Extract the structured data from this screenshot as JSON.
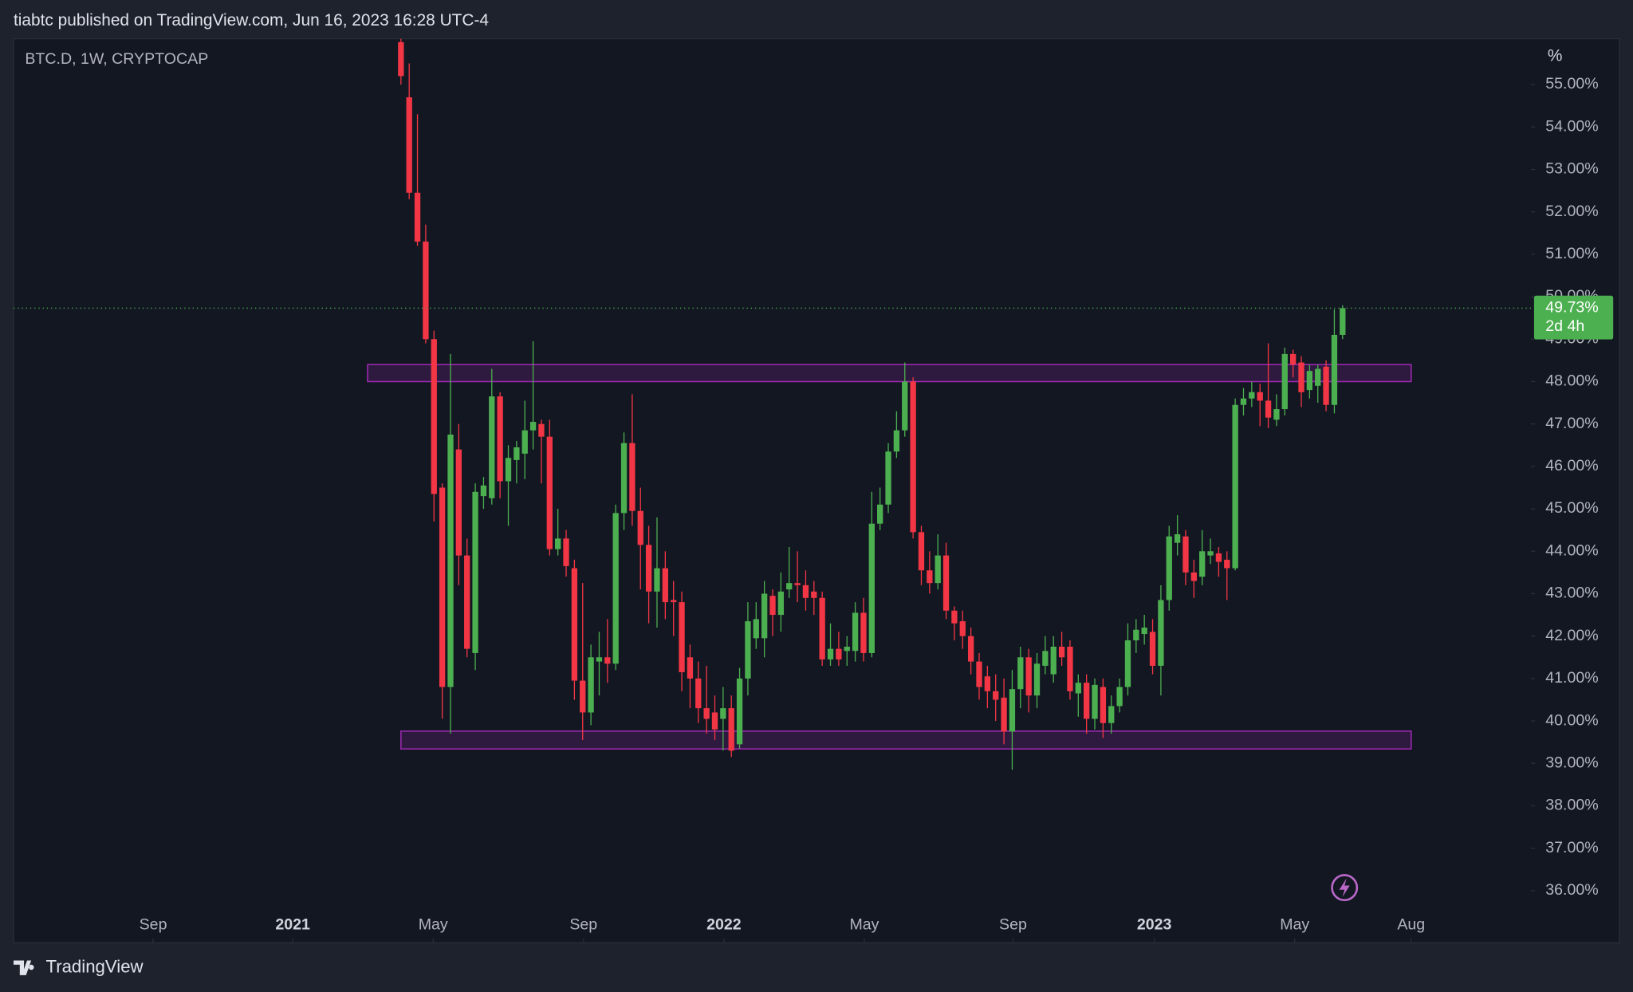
{
  "header": "tiabtc published on TradingView.com, Jun 16, 2023 16:28 UTC-4",
  "footer": "TradingView",
  "chart_data": {
    "type": "candlestick",
    "subtitle": "BTC.D, 1W, CRYPTOCAP",
    "y_unit": "%",
    "up_color": "#4caf50",
    "down_color": "#f23645",
    "open": [
      56.0,
      54.7,
      52.45,
      51.3,
      49.0,
      45.5,
      40.8,
      46.4,
      43.9,
      41.6,
      45.3,
      45.25,
      47.65,
      45.65,
      46.15,
      46.3,
      46.85,
      47.0,
      46.7,
      44.05,
      44.3,
      43.6,
      40.95,
      40.2,
      41.4,
      41.5,
      41.35,
      44.9,
      46.55,
      44.95,
      44.15,
      43.05,
      43.6,
      42.85,
      42.8,
      41.5,
      41.0,
      40.3,
      40.2,
      40.05,
      40.3,
      39.45,
      41.0,
      41.95,
      41.95,
      42.95,
      42.5,
      43.1,
      43.25,
      43.2,
      43.05,
      42.9,
      41.45,
      41.7,
      41.65,
      41.65,
      42.55,
      41.6,
      44.65,
      45.1,
      46.35,
      46.85,
      48.0,
      44.45,
      43.55,
      43.25,
      43.9,
      42.6,
      42.35,
      42.0,
      41.4,
      41.05,
      40.7,
      40.55,
      39.75,
      40.75,
      41.5,
      40.6,
      41.3,
      41.1,
      41.75,
      41.75,
      40.65,
      40.9,
      40.05,
      40.8,
      39.95,
      40.35,
      40.8,
      41.9,
      42.05,
      42.1,
      41.3,
      42.85,
      44.2,
      44.35,
      43.5,
      43.4,
      43.9,
      43.95,
      43.8,
      43.6,
      47.45,
      47.6,
      47.75,
      47.55,
      47.1,
      47.35,
      48.65,
      48.45,
      47.8,
      47.9,
      48.35,
      47.45,
      49.1
    ],
    "high": [
      56.3,
      55.5,
      54.3,
      51.7,
      49.2,
      45.6,
      48.65,
      47.0,
      44.3,
      45.6,
      45.75,
      48.3,
      47.75,
      46.5,
      46.6,
      47.55,
      48.95,
      47.1,
      47.1,
      45.0,
      44.5,
      43.8,
      43.25,
      41.8,
      42.1,
      42.4,
      45.1,
      46.8,
      47.7,
      45.5,
      44.6,
      44.8,
      44.0,
      43.3,
      43.05,
      41.8,
      41.4,
      41.3,
      40.6,
      40.8,
      40.6,
      41.25,
      42.8,
      42.8,
      43.3,
      43.1,
      43.5,
      44.1,
      44.0,
      43.55,
      43.3,
      43.05,
      42.3,
      42.1,
      42.0,
      42.8,
      42.9,
      45.4,
      45.5,
      46.55,
      47.3,
      48.45,
      48.1,
      44.6,
      44.0,
      44.4,
      44.2,
      42.7,
      42.6,
      42.2,
      41.6,
      41.3,
      41.1,
      41.0,
      41.2,
      41.75,
      41.7,
      41.6,
      42.0,
      42.0,
      42.1,
      41.9,
      41.1,
      41.1,
      41.0,
      41.0,
      40.6,
      41.0,
      42.3,
      42.4,
      42.5,
      42.4,
      43.2,
      44.6,
      44.85,
      44.5,
      43.8,
      44.5,
      44.3,
      44.1,
      44.0,
      47.6,
      47.85,
      48.0,
      47.95,
      48.9,
      47.7,
      48.8,
      48.75,
      48.6,
      48.4,
      48.4,
      48.5,
      49.7,
      49.8
    ],
    "low": [
      55.0,
      52.3,
      51.2,
      48.9,
      44.7,
      40.05,
      39.7,
      43.2,
      41.5,
      41.2,
      45.0,
      45.1,
      45.25,
      44.6,
      45.6,
      45.7,
      46.4,
      45.6,
      43.9,
      43.9,
      43.4,
      40.5,
      39.55,
      39.9,
      40.6,
      40.9,
      41.2,
      44.5,
      44.6,
      43.1,
      42.3,
      42.2,
      42.4,
      42.0,
      40.7,
      40.3,
      39.95,
      39.7,
      39.55,
      39.3,
      39.15,
      39.35,
      40.6,
      41.7,
      41.5,
      42.0,
      42.1,
      42.9,
      42.8,
      42.6,
      42.5,
      41.3,
      41.3,
      41.3,
      41.3,
      41.4,
      41.4,
      41.5,
      44.5,
      44.9,
      46.2,
      46.7,
      44.3,
      43.2,
      43.0,
      43.1,
      42.4,
      41.9,
      41.7,
      41.1,
      40.5,
      40.3,
      40.0,
      39.45,
      38.85,
      40.3,
      40.2,
      40.3,
      41.1,
      40.9,
      41.3,
      40.5,
      40.1,
      39.7,
      39.8,
      39.6,
      39.7,
      40.2,
      40.6,
      41.6,
      41.8,
      41.1,
      40.6,
      42.6,
      43.9,
      43.2,
      42.9,
      43.2,
      43.7,
      43.4,
      42.85,
      43.55,
      47.2,
      47.4,
      46.95,
      46.9,
      46.95,
      47.2,
      48.1,
      47.4,
      47.6,
      47.5,
      47.3,
      47.25,
      49.0
    ],
    "close": [
      55.2,
      52.45,
      51.3,
      49.0,
      45.35,
      40.8,
      46.75,
      43.9,
      41.7,
      45.4,
      45.55,
      47.65,
      45.65,
      46.2,
      46.45,
      46.85,
      47.05,
      46.7,
      44.05,
      44.3,
      43.65,
      40.95,
      40.2,
      41.5,
      41.5,
      41.35,
      44.9,
      46.55,
      44.95,
      44.15,
      43.05,
      43.6,
      42.8,
      42.8,
      41.15,
      41.0,
      40.3,
      40.05,
      39.8,
      40.3,
      39.3,
      41.0,
      42.35,
      42.4,
      43.0,
      42.5,
      43.05,
      43.25,
      43.2,
      42.9,
      42.9,
      41.45,
      41.7,
      41.45,
      41.75,
      42.55,
      41.6,
      44.65,
      45.1,
      46.35,
      46.85,
      48.0,
      44.45,
      43.55,
      43.25,
      43.9,
      42.6,
      42.3,
      42.0,
      41.4,
      40.8,
      40.7,
      40.5,
      39.75,
      40.75,
      41.5,
      40.6,
      41.35,
      41.65,
      41.75,
      41.5,
      40.7,
      40.9,
      40.05,
      40.85,
      39.95,
      40.35,
      40.8,
      41.9,
      42.15,
      42.2,
      41.3,
      42.85,
      44.35,
      44.4,
      43.5,
      43.3,
      44.0,
      44.0,
      43.75,
      43.6,
      47.45,
      47.6,
      47.75,
      47.55,
      47.15,
      47.35,
      48.65,
      48.4,
      47.75,
      48.25,
      48.3,
      47.45,
      49.1,
      49.73
    ],
    "xlim": [
      -46.9,
      136.8
    ],
    "xticks": [
      {
        "value": -30.0,
        "label": "Sep"
      },
      {
        "value": -13.1,
        "label": "2021"
      },
      {
        "value": 3.9,
        "label": "May"
      },
      {
        "value": 22.1,
        "label": "Sep"
      },
      {
        "value": 39.1,
        "label": "2022"
      },
      {
        "value": 56.1,
        "label": "May"
      },
      {
        "value": 74.1,
        "label": "Sep"
      },
      {
        "value": 91.2,
        "label": "2023"
      },
      {
        "value": 108.2,
        "label": "May"
      },
      {
        "value": 122.3,
        "label": "Aug"
      }
    ],
    "ylim": [
      34.77,
      56.08
    ],
    "yticks": [
      {
        "value": 36,
        "label": "36.00%"
      },
      {
        "value": 37,
        "label": "37.00%"
      },
      {
        "value": 38,
        "label": "38.00%"
      },
      {
        "value": 39,
        "label": "39.00%"
      },
      {
        "value": 40,
        "label": "40.00%"
      },
      {
        "value": 41,
        "label": "41.00%"
      },
      {
        "value": 42,
        "label": "42.00%"
      },
      {
        "value": 43,
        "label": "43.00%"
      },
      {
        "value": 44,
        "label": "44.00%"
      },
      {
        "value": 45,
        "label": "45.00%"
      },
      {
        "value": 46,
        "label": "46.00%"
      },
      {
        "value": 47,
        "label": "47.00%"
      },
      {
        "value": 48,
        "label": "48.00%"
      },
      {
        "value": 49,
        "label": "49.00%"
      },
      {
        "value": 50,
        "label": "50.00%"
      },
      {
        "value": 51,
        "label": "51.00%"
      },
      {
        "value": 52,
        "label": "52.00%"
      },
      {
        "value": 53,
        "label": "53.00%"
      },
      {
        "value": 54,
        "label": "54.00%"
      },
      {
        "value": 55,
        "label": "55.00%"
      }
    ],
    "zones": [
      {
        "x": [
          -4.04,
          122.3
        ],
        "y": [
          48.0,
          48.4
        ]
      },
      {
        "x": [
          0,
          122.3
        ],
        "y": [
          39.34,
          39.76
        ]
      }
    ],
    "zone_color": "#9c27b0",
    "last_price": {
      "value": 49.73,
      "label": "49.73%"
    },
    "countdown": "2d 4h"
  }
}
